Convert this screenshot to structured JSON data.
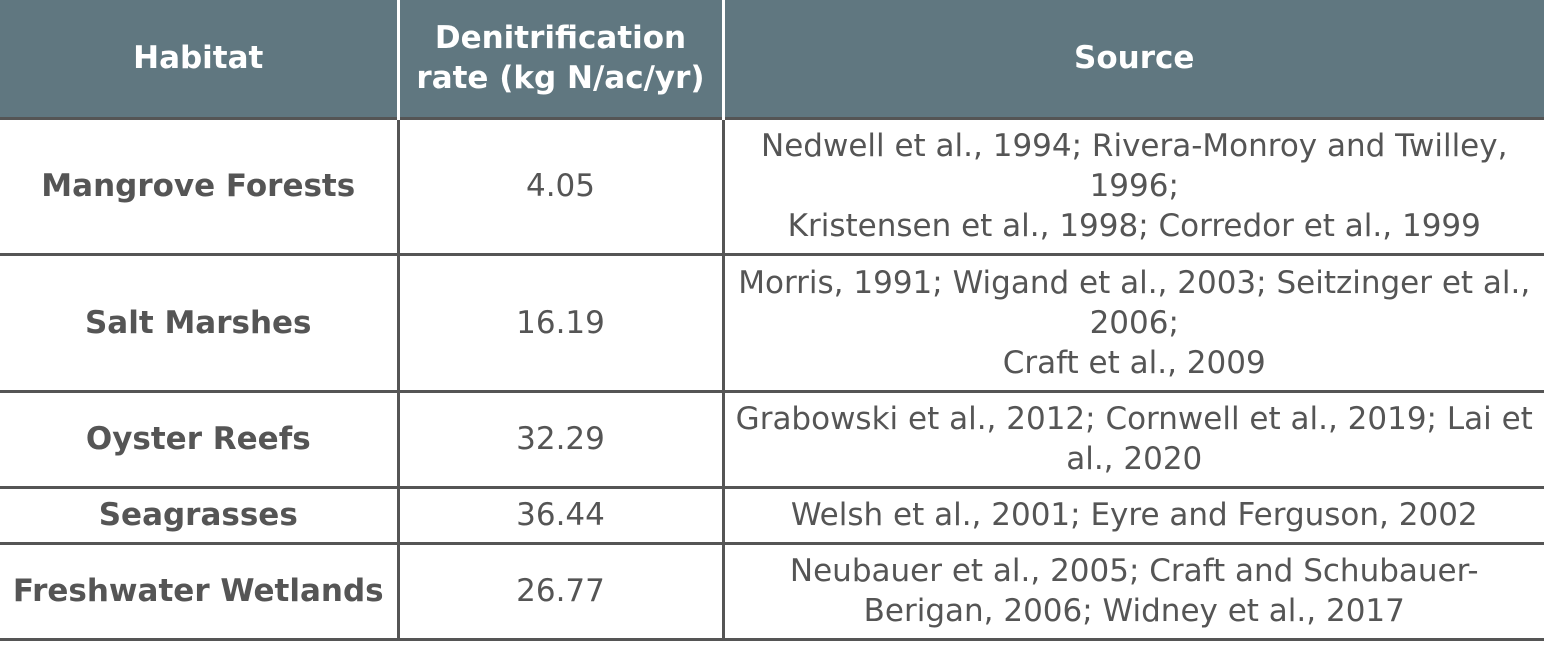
{
  "table": {
    "headers": {
      "habitat": "Habitat",
      "rate": "Denitrification rate (kg N/ac/yr)",
      "source": "Source"
    },
    "rows": [
      {
        "habitat": "Mangrove Forests",
        "rate": "4.05",
        "source": "Nedwell et al., 1994; Rivera-Monroy and Twilley, 1996;\nKristensen et al., 1998; Corredor et al., 1999"
      },
      {
        "habitat": "Salt Marshes",
        "rate": "16.19",
        "source": "Morris, 1991; Wigand et al., 2003; Seitzinger et al., 2006;\nCraft et al., 2009"
      },
      {
        "habitat": "Oyster Reefs",
        "rate": "32.29",
        "source": "Grabowski et al., 2012; Cornwell et al., 2019; Lai et al., 2020"
      },
      {
        "habitat": "Seagrasses",
        "rate": "36.44",
        "source": "Welsh et al., 2001; Eyre and Ferguson, 2002"
      },
      {
        "habitat": "Freshwater Wetlands",
        "rate": "26.77",
        "source": "Neubauer et al., 2005; Craft and Schubauer-Berigan, 2006; Widney et al., 2017"
      }
    ]
  }
}
